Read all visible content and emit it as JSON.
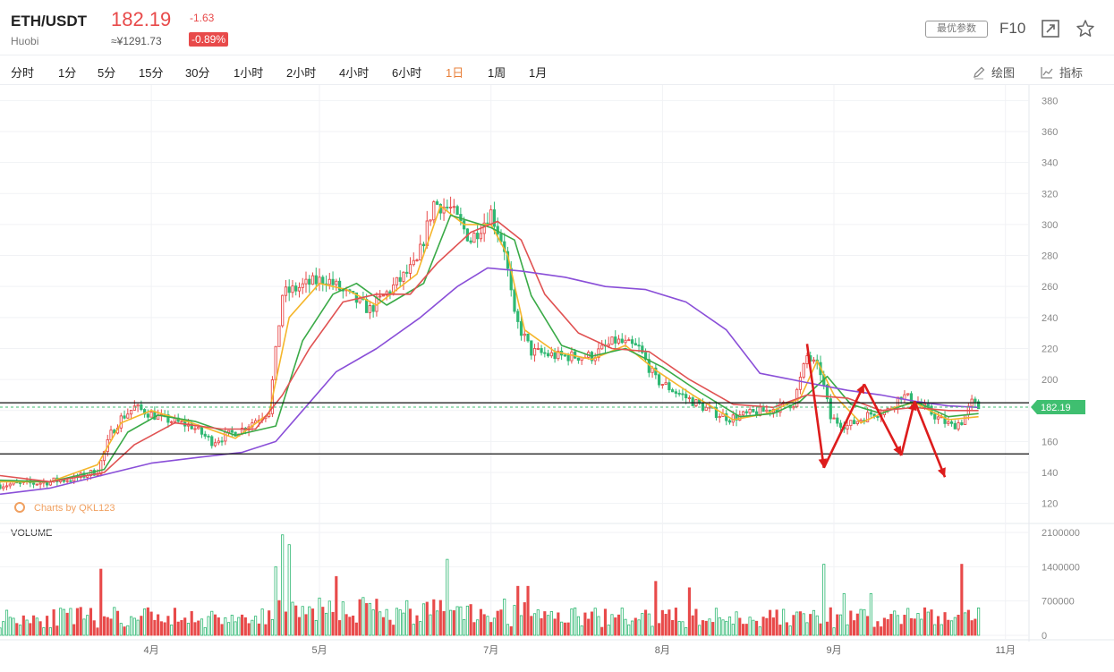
{
  "header": {
    "symbol": "ETH/USDT",
    "exchange": "Huobi",
    "price": "182.19",
    "change": "-1.63",
    "cny_price": "≈¥1291.73",
    "change_pct": "-0.89%",
    "params_button": "最优参数",
    "f10_label": "F10",
    "expand_icon": "expand-icon",
    "favorite_icon": "star-icon"
  },
  "toolbar": {
    "timeframes": [
      "分时",
      "1分",
      "5分",
      "15分",
      "30分",
      "1小时",
      "2小时",
      "4小时",
      "6小时",
      "1日",
      "1周",
      "1月"
    ],
    "active_timeframe": "1日",
    "draw_label": "绘图",
    "indicator_label": "指标"
  },
  "colors": {
    "up": "#e84a4a",
    "down": "#2eb872",
    "ma_yellow": "#f5b62c",
    "ma_green": "#3aaa47",
    "ma_red": "#e05252",
    "ma_purple": "#8a4fd8",
    "annotation": "#dd1c1c",
    "price_tag": "#3fbf70"
  },
  "chart_data": {
    "type": "candlestick",
    "x_ticks": [
      "4月",
      "5月",
      "7月",
      "8月",
      "9月",
      "11月"
    ],
    "x_tick_days": [
      45,
      95,
      146,
      197,
      248,
      299
    ],
    "x_range_days": [
      0,
      306
    ],
    "y_ticks": [
      120,
      140,
      160,
      180,
      200,
      220,
      240,
      260,
      280,
      300,
      320,
      340,
      360,
      380
    ],
    "ylim": [
      110,
      390
    ],
    "current_price": 182.19,
    "current_price_label": "182.19",
    "horizontal_lines": [
      185,
      152
    ],
    "watermark": "Charts by QKL123",
    "price_path": [
      [
        0,
        132
      ],
      [
        10,
        133
      ],
      [
        22,
        136
      ],
      [
        29,
        141
      ],
      [
        33,
        165
      ],
      [
        36,
        175
      ],
      [
        40,
        182
      ],
      [
        48,
        175
      ],
      [
        57,
        170
      ],
      [
        63,
        160
      ],
      [
        72,
        168
      ],
      [
        80,
        180
      ],
      [
        84,
        255
      ],
      [
        92,
        262
      ],
      [
        97,
        265
      ],
      [
        103,
        255
      ],
      [
        110,
        245
      ],
      [
        118,
        262
      ],
      [
        124,
        275
      ],
      [
        129,
        314
      ],
      [
        134,
        310
      ],
      [
        140,
        290
      ],
      [
        146,
        308
      ],
      [
        150,
        285
      ],
      [
        153,
        240
      ],
      [
        158,
        218
      ],
      [
        166,
        215
      ],
      [
        176,
        215
      ],
      [
        183,
        225
      ],
      [
        190,
        220
      ],
      [
        195,
        200
      ],
      [
        201,
        192
      ],
      [
        211,
        180
      ],
      [
        217,
        175
      ],
      [
        228,
        180
      ],
      [
        236,
        185
      ],
      [
        240,
        215
      ],
      [
        244,
        205
      ],
      [
        247,
        175
      ],
      [
        252,
        170
      ],
      [
        259,
        178
      ],
      [
        264,
        180
      ],
      [
        268,
        190
      ],
      [
        273,
        185
      ],
      [
        279,
        175
      ],
      [
        283,
        170
      ],
      [
        286,
        173
      ],
      [
        289,
        185
      ],
      [
        291,
        182
      ]
    ],
    "ma_lines": [
      {
        "color": "ma_yellow",
        "points": [
          [
            0,
            134
          ],
          [
            15,
            134
          ],
          [
            29,
            145
          ],
          [
            36,
            172
          ],
          [
            45,
            180
          ],
          [
            57,
            172
          ],
          [
            70,
            162
          ],
          [
            80,
            178
          ],
          [
            86,
            240
          ],
          [
            95,
            262
          ],
          [
            103,
            258
          ],
          [
            112,
            248
          ],
          [
            124,
            268
          ],
          [
            131,
            312
          ],
          [
            138,
            300
          ],
          [
            146,
            300
          ],
          [
            151,
            280
          ],
          [
            156,
            232
          ],
          [
            165,
            218
          ],
          [
            176,
            213
          ],
          [
            186,
            222
          ],
          [
            195,
            206
          ],
          [
            206,
            190
          ],
          [
            218,
            174
          ],
          [
            228,
            178
          ],
          [
            238,
            188
          ],
          [
            243,
            212
          ],
          [
            248,
            190
          ],
          [
            256,
            172
          ],
          [
            266,
            182
          ],
          [
            272,
            185
          ],
          [
            282,
            174
          ],
          [
            291,
            176
          ]
        ]
      },
      {
        "color": "ma_green",
        "points": [
          [
            0,
            135
          ],
          [
            15,
            134
          ],
          [
            31,
            142
          ],
          [
            38,
            166
          ],
          [
            47,
            177
          ],
          [
            58,
            173
          ],
          [
            70,
            164
          ],
          [
            82,
            170
          ],
          [
            90,
            225
          ],
          [
            99,
            255
          ],
          [
            106,
            262
          ],
          [
            115,
            248
          ],
          [
            126,
            262
          ],
          [
            134,
            306
          ],
          [
            146,
            298
          ],
          [
            153,
            290
          ],
          [
            158,
            254
          ],
          [
            167,
            222
          ],
          [
            176,
            215
          ],
          [
            186,
            220
          ],
          [
            197,
            208
          ],
          [
            208,
            192
          ],
          [
            220,
            176
          ],
          [
            230,
            178
          ],
          [
            238,
            186
          ],
          [
            246,
            202
          ],
          [
            253,
            184
          ],
          [
            262,
            178
          ],
          [
            272,
            186
          ],
          [
            282,
            176
          ],
          [
            291,
            178
          ]
        ]
      },
      {
        "color": "ma_red",
        "points": [
          [
            0,
            138
          ],
          [
            15,
            134
          ],
          [
            31,
            140
          ],
          [
            40,
            158
          ],
          [
            52,
            172
          ],
          [
            66,
            168
          ],
          [
            76,
            168
          ],
          [
            84,
            190
          ],
          [
            92,
            220
          ],
          [
            102,
            250
          ],
          [
            112,
            255
          ],
          [
            122,
            255
          ],
          [
            130,
            275
          ],
          [
            140,
            295
          ],
          [
            148,
            302
          ],
          [
            155,
            290
          ],
          [
            162,
            255
          ],
          [
            172,
            230
          ],
          [
            182,
            220
          ],
          [
            193,
            218
          ],
          [
            205,
            200
          ],
          [
            218,
            184
          ],
          [
            230,
            182
          ],
          [
            240,
            190
          ],
          [
            252,
            188
          ],
          [
            262,
            180
          ],
          [
            272,
            182
          ],
          [
            282,
            180
          ],
          [
            291,
            180
          ]
        ]
      },
      {
        "color": "ma_purple",
        "points": [
          [
            0,
            126
          ],
          [
            15,
            130
          ],
          [
            30,
            138
          ],
          [
            45,
            146
          ],
          [
            60,
            150
          ],
          [
            72,
            153
          ],
          [
            82,
            160
          ],
          [
            90,
            180
          ],
          [
            100,
            205
          ],
          [
            112,
            220
          ],
          [
            125,
            240
          ],
          [
            136,
            260
          ],
          [
            145,
            272
          ],
          [
            155,
            270
          ],
          [
            168,
            266
          ],
          [
            180,
            260
          ],
          [
            192,
            258
          ],
          [
            204,
            250
          ],
          [
            216,
            232
          ],
          [
            226,
            204
          ],
          [
            240,
            198
          ],
          [
            252,
            193
          ],
          [
            262,
            190
          ],
          [
            272,
            186
          ],
          [
            282,
            183
          ],
          [
            291,
            182
          ]
        ]
      }
    ],
    "annotation_path": [
      [
        240,
        223
      ],
      [
        245,
        143
      ],
      [
        257,
        197
      ],
      [
        268,
        151
      ],
      [
        272,
        186
      ],
      [
        281,
        137
      ]
    ],
    "volume": {
      "label": "VOLUME",
      "y_ticks": [
        "2100000",
        "1400000",
        "700000",
        "0"
      ],
      "ylim": [
        0,
        2100000
      ],
      "spikes": [
        [
          30,
          1350000
        ],
        [
          82,
          1400000
        ],
        [
          84,
          2050000
        ],
        [
          86,
          1850000
        ],
        [
          100,
          1200000
        ],
        [
          133,
          1550000
        ],
        [
          154,
          1000000
        ],
        [
          157,
          1000000
        ],
        [
          195,
          1100000
        ],
        [
          205,
          970000
        ],
        [
          245,
          1450000
        ],
        [
          251,
          850000
        ],
        [
          259,
          850000
        ],
        [
          286,
          1450000
        ]
      ]
    }
  }
}
